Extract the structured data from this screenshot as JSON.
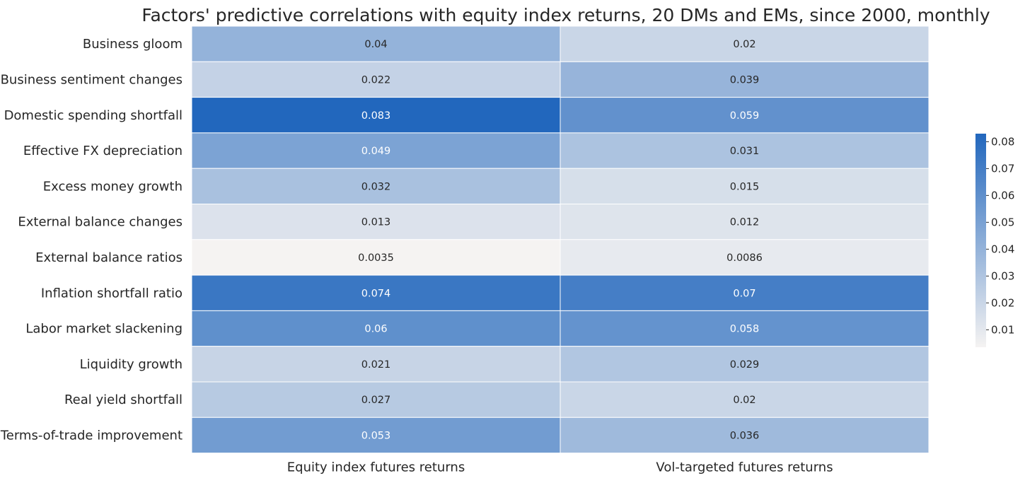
{
  "chart_data": {
    "type": "heatmap",
    "title": "Factors' predictive correlations with equity index returns, 20 DMs and EMs, since 2000, monthly",
    "rows": [
      "Business gloom",
      "Business sentiment changes",
      "Domestic spending shortfall",
      "Effective FX depreciation",
      "Excess money growth",
      "External balance changes",
      "External balance ratios",
      "Inflation shortfall ratio",
      "Labor market slackening",
      "Liquidity growth",
      "Real yield shortfall",
      "Terms-of-trade improvement"
    ],
    "columns": [
      "Equity index futures returns",
      "Vol-targeted futures returns"
    ],
    "values": [
      [
        0.04,
        0.02
      ],
      [
        0.022,
        0.039
      ],
      [
        0.083,
        0.059
      ],
      [
        0.049,
        0.031
      ],
      [
        0.032,
        0.015
      ],
      [
        0.013,
        0.012
      ],
      [
        0.0035,
        0.0086
      ],
      [
        0.074,
        0.07
      ],
      [
        0.06,
        0.058
      ],
      [
        0.021,
        0.029
      ],
      [
        0.027,
        0.02
      ],
      [
        0.053,
        0.036
      ]
    ],
    "cell_labels": [
      [
        "0.04",
        "0.02"
      ],
      [
        "0.022",
        "0.039"
      ],
      [
        "0.083",
        "0.059"
      ],
      [
        "0.049",
        "0.031"
      ],
      [
        "0.032",
        "0.015"
      ],
      [
        "0.013",
        "0.012"
      ],
      [
        "0.0035",
        "0.0086"
      ],
      [
        "0.074",
        "0.07"
      ],
      [
        "0.06",
        "0.058"
      ],
      [
        "0.021",
        "0.029"
      ],
      [
        "0.027",
        "0.02"
      ],
      [
        "0.053",
        "0.036"
      ]
    ],
    "colorbar": {
      "range": [
        0.0035,
        0.083
      ],
      "ticks": [
        "0.01",
        "0.02",
        "0.03",
        "0.04",
        "0.05",
        "0.06",
        "0.07",
        "0.08"
      ],
      "low_color": "#f5f3f2",
      "high_color": "#2267bd"
    },
    "grid": true,
    "legend_placement": "right"
  }
}
